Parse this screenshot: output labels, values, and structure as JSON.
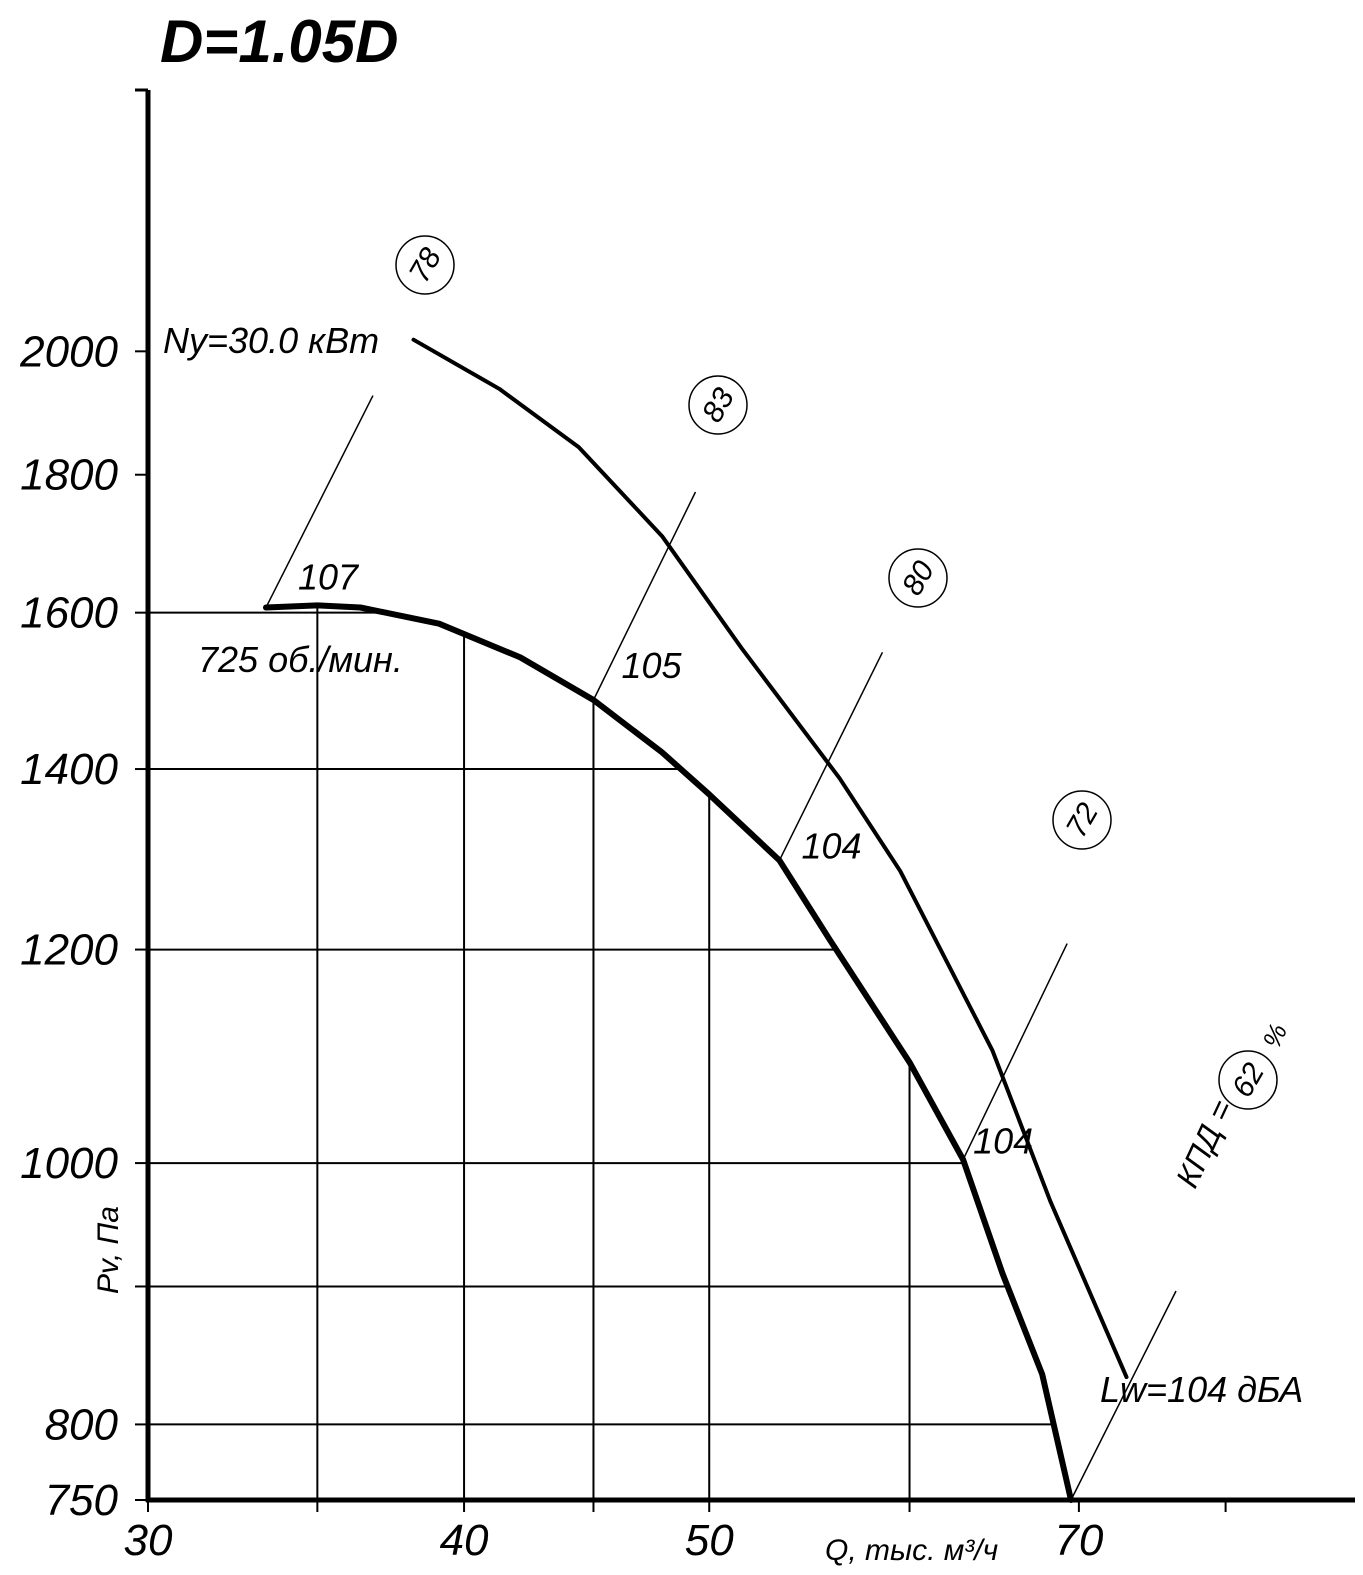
{
  "chart_data": {
    "type": "line",
    "title": "D=1.05D",
    "x_label": "Q, тыс. м³/ч",
    "y_label": "Pv, Па",
    "xscale": "log",
    "yscale": "log",
    "xlim": [
      30,
      90
    ],
    "ylim": [
      750,
      2500
    ],
    "xticks": [
      30,
      40,
      50,
      70
    ],
    "yticks": [
      750,
      800,
      1000,
      1200,
      1400,
      1600,
      1800,
      2000
    ],
    "xgrid": [
      35,
      45,
      60,
      80
    ],
    "ygrid": [
      900
    ],
    "series": [
      {
        "name": "lower",
        "color": "#000000",
        "x": [
          33.4,
          35.0,
          36.4,
          39.1,
          42.1,
          45.0,
          47.9,
          50.0,
          53.3,
          55.8,
          60.0,
          63.0,
          65.3,
          67.7,
          69.5
        ],
        "values": [
          1607,
          1610,
          1607,
          1585,
          1540,
          1485,
          1420,
          1370,
          1295,
          1210,
          1090,
          1003,
          910,
          835,
          750
        ]
      },
      {
        "name": "upper",
        "color": "#000000",
        "x": [
          38.2,
          41.3,
          44.4,
          47.9,
          51.5,
          56.3,
          59.5,
          64.7,
          68.2,
          73.1
        ],
        "values": [
          2020,
          1937,
          1843,
          1708,
          1552,
          1389,
          1283,
          1101,
          968,
          833
        ]
      }
    ],
    "annotations": {
      "power": "Ny=30.0 кВт",
      "speed": "725 об./мин.",
      "noise": "Lw=104 дБА",
      "efficiency_label": "КПД =",
      "efficiency_unit": "%",
      "efficiency": [
        "78",
        "83",
        "80",
        "72",
        "62"
      ],
      "sound": [
        "107",
        "105",
        "104",
        "104"
      ]
    }
  }
}
